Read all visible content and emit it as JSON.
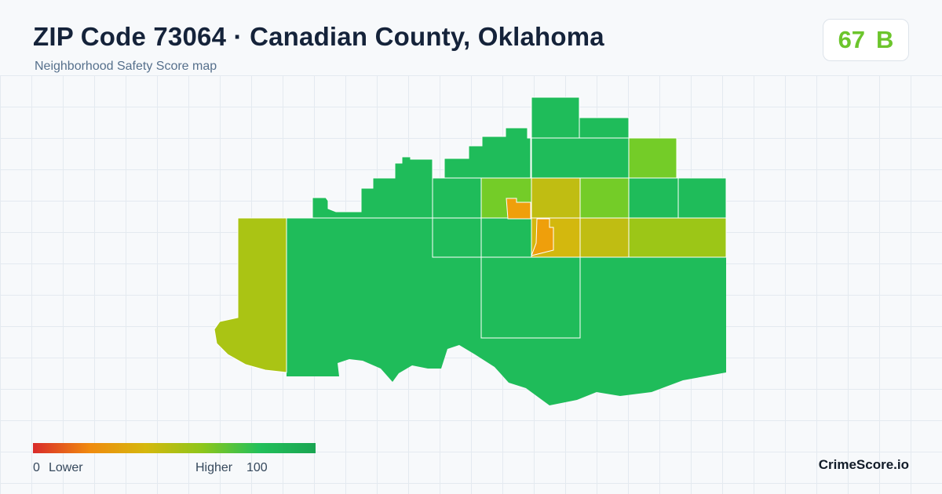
{
  "header": {
    "title": "ZIP Code 73064 · Canadian County, Oklahoma",
    "subtitle": "Neighborhood Safety Score map"
  },
  "score": {
    "value": "67",
    "grade": "B",
    "color": "#6cc52c"
  },
  "map": {
    "colors": {
      "dark_green": "#1fbc5a",
      "light_green": "#74cc28",
      "yellow_green": "#9cc617",
      "olive": "#aac414",
      "mustard": "#c0bd12",
      "gold": "#d3b80e",
      "orange": "#ef9f0b",
      "boundary": "#ffffff"
    }
  },
  "legend": {
    "min": "0",
    "low_label": "Lower",
    "high_label": "Higher",
    "max": "100",
    "gradient": [
      "#d92b2b",
      "#f08a0e",
      "#d5b80d",
      "#8dc61b",
      "#22c05a",
      "#1aa552"
    ]
  },
  "brand": {
    "name": "CrimeScore.io"
  }
}
